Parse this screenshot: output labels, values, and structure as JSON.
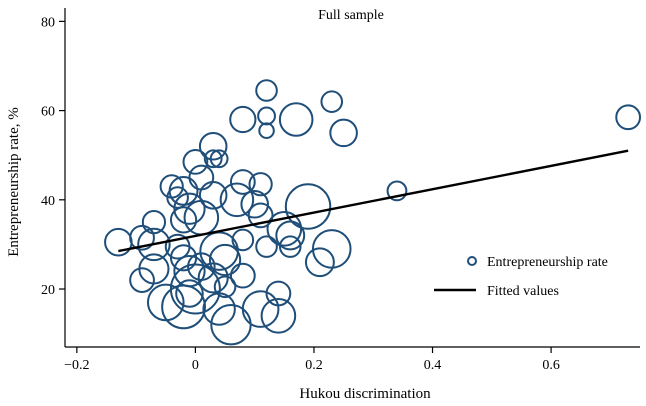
{
  "chart_data": {
    "type": "scatter",
    "title": "Full sample",
    "xlabel": "Hukou discrimination",
    "ylabel": "Entrepreneurship rate, %",
    "xlim": [
      -0.22,
      0.75
    ],
    "ylim": [
      7,
      83
    ],
    "x_ticks": [
      -0.2,
      0,
      0.2,
      0.4,
      0.6
    ],
    "x_tick_labels": [
      "−0.2",
      "0",
      "0.2",
      "0.4",
      "0.6"
    ],
    "y_ticks": [
      20,
      40,
      60,
      80
    ],
    "y_tick_labels": [
      "20",
      "40",
      "60",
      "80"
    ],
    "grid": false,
    "legend": {
      "placement": "bottom-right",
      "entries": [
        "Entrepreneurship rate",
        "Fitted values"
      ]
    },
    "colors": {
      "markers": "#1f4e79",
      "fit": "#000000"
    },
    "series": [
      {
        "name": "Entrepreneurship rate",
        "marker": "hollow-circle",
        "points": [
          {
            "x": 0.73,
            "y": 58.5,
            "w": 8
          },
          {
            "x": 0.34,
            "y": 42.0,
            "w": 5
          },
          {
            "x": 0.23,
            "y": 62.0,
            "w": 6
          },
          {
            "x": 0.12,
            "y": 64.5,
            "w": 6
          },
          {
            "x": 0.12,
            "y": 58.8,
            "w": 4
          },
          {
            "x": 0.12,
            "y": 55.5,
            "w": 3
          },
          {
            "x": 0.17,
            "y": 58.0,
            "w": 15
          },
          {
            "x": 0.25,
            "y": 55.0,
            "w": 10
          },
          {
            "x": 0.08,
            "y": 58.0,
            "w": 9
          },
          {
            "x": 0.03,
            "y": 52.0,
            "w": 10
          },
          {
            "x": 0.03,
            "y": 49.2,
            "w": 4
          },
          {
            "x": 0.04,
            "y": 49.2,
            "w": 4
          },
          {
            "x": 0.0,
            "y": 48.5,
            "w": 8
          },
          {
            "x": 0.01,
            "y": 45.0,
            "w": 8
          },
          {
            "x": 0.08,
            "y": 44.0,
            "w": 8
          },
          {
            "x": 0.11,
            "y": 43.5,
            "w": 7
          },
          {
            "x": -0.04,
            "y": 43.0,
            "w": 7
          },
          {
            "x": -0.02,
            "y": 42.0,
            "w": 11
          },
          {
            "x": 0.03,
            "y": 41.0,
            "w": 10
          },
          {
            "x": 0.07,
            "y": 40.0,
            "w": 15
          },
          {
            "x": 0.1,
            "y": 39.0,
            "w": 10
          },
          {
            "x": 0.19,
            "y": 38.5,
            "w": 28
          },
          {
            "x": -0.03,
            "y": 40.5,
            "w": 6
          },
          {
            "x": -0.01,
            "y": 38.0,
            "w": 13
          },
          {
            "x": 0.01,
            "y": 36.0,
            "w": 16
          },
          {
            "x": 0.11,
            "y": 36.5,
            "w": 8
          },
          {
            "x": -0.07,
            "y": 35.0,
            "w": 7
          },
          {
            "x": -0.02,
            "y": 35.5,
            "w": 9
          },
          {
            "x": 0.15,
            "y": 33.5,
            "w": 16
          },
          {
            "x": 0.16,
            "y": 32.0,
            "w": 11
          },
          {
            "x": -0.09,
            "y": 31.5,
            "w": 8
          },
          {
            "x": -0.13,
            "y": 30.5,
            "w": 10
          },
          {
            "x": -0.07,
            "y": 30.0,
            "w": 14
          },
          {
            "x": -0.03,
            "y": 29.5,
            "w": 8
          },
          {
            "x": -0.02,
            "y": 27.0,
            "w": 9
          },
          {
            "x": 0.01,
            "y": 25.0,
            "w": 10
          },
          {
            "x": 0.08,
            "y": 31.0,
            "w": 6
          },
          {
            "x": 0.12,
            "y": 29.5,
            "w": 6
          },
          {
            "x": 0.16,
            "y": 29.5,
            "w": 6
          },
          {
            "x": 0.04,
            "y": 28.5,
            "w": 20
          },
          {
            "x": 0.05,
            "y": 26.5,
            "w": 13
          },
          {
            "x": 0.23,
            "y": 29.0,
            "w": 20
          },
          {
            "x": 0.21,
            "y": 26.0,
            "w": 11
          },
          {
            "x": -0.01,
            "y": 24.0,
            "w": 13
          },
          {
            "x": 0.03,
            "y": 22.5,
            "w": 12
          },
          {
            "x": -0.07,
            "y": 24.5,
            "w": 12
          },
          {
            "x": 0.08,
            "y": 23.0,
            "w": 8
          },
          {
            "x": -0.09,
            "y": 22.0,
            "w": 8
          },
          {
            "x": 0.0,
            "y": 20.0,
            "w": 34
          },
          {
            "x": -0.01,
            "y": 19.0,
            "w": 10
          },
          {
            "x": 0.05,
            "y": 20.5,
            "w": 6
          },
          {
            "x": -0.05,
            "y": 17.0,
            "w": 18
          },
          {
            "x": -0.02,
            "y": 16.0,
            "w": 26
          },
          {
            "x": 0.04,
            "y": 15.5,
            "w": 14
          },
          {
            "x": 0.11,
            "y": 15.5,
            "w": 18
          },
          {
            "x": 0.14,
            "y": 19.0,
            "w": 8
          },
          {
            "x": 0.14,
            "y": 14.0,
            "w": 16
          },
          {
            "x": 0.06,
            "y": 12.0,
            "w": 22
          }
        ]
      },
      {
        "name": "Fitted values",
        "type": "line",
        "x": [
          -0.13,
          0.73
        ],
        "y": [
          28.5,
          51.0
        ]
      }
    ]
  }
}
